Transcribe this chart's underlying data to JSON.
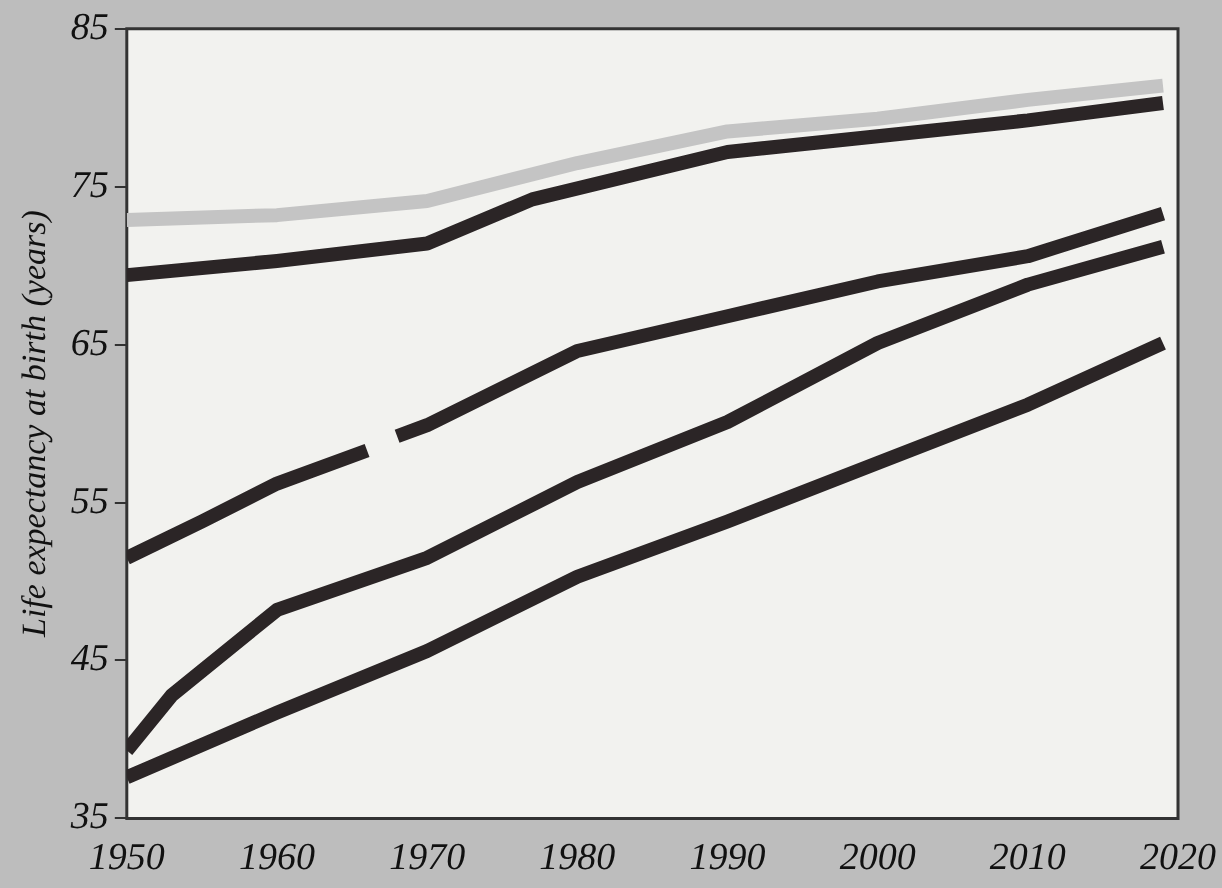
{
  "chart_data": {
    "type": "line",
    "ylabel": "Life expectancy at birth (years)",
    "xlim": [
      1950,
      2020
    ],
    "xticks": [
      1950,
      1960,
      1970,
      1980,
      1990,
      2000,
      2010,
      2020
    ],
    "ylim": [
      35,
      85
    ],
    "yticks": [
      35,
      45,
      55,
      65,
      75,
      85
    ],
    "grid": false,
    "legend": false,
    "marker": "none",
    "line_style": "solid",
    "series": [
      {
        "color": "#c4c4c4",
        "x": [
          1950,
          1960,
          1970,
          1980,
          1990,
          2000,
          2010,
          2019
        ],
        "values": [
          72.9,
          73.2,
          74.1,
          76.5,
          78.5,
          79.3,
          80.5,
          81.4
        ]
      },
      {
        "color": "#2b2526",
        "x": [
          1950,
          1960,
          1970,
          1977,
          1990,
          2000,
          2010,
          2019
        ],
        "values": [
          69.4,
          70.3,
          71.4,
          74.2,
          77.2,
          78.2,
          79.2,
          80.3
        ]
      },
      {
        "color": "#2b2526",
        "x": [
          1950,
          1955,
          1960,
          1966,
          1967,
          1968,
          1970,
          1980,
          1990,
          2000,
          2010,
          2019
        ],
        "values": [
          51.5,
          53.8,
          56.2,
          58.3,
          null,
          59.2,
          59.9,
          64.6,
          66.8,
          69.0,
          70.6,
          73.3
        ]
      },
      {
        "color": "#2b2526",
        "x": [
          1950,
          1953,
          1960,
          1970,
          1980,
          1990,
          2000,
          2010,
          2019
        ],
        "values": [
          39.3,
          42.8,
          48.2,
          51.5,
          56.3,
          60.1,
          65.1,
          68.8,
          71.2
        ]
      },
      {
        "color": "#2b2526",
        "x": [
          1950,
          1960,
          1970,
          1980,
          1990,
          2000,
          2010,
          2019
        ],
        "values": [
          37.6,
          41.7,
          45.6,
          50.3,
          53.8,
          57.5,
          61.2,
          65.1
        ]
      }
    ]
  }
}
